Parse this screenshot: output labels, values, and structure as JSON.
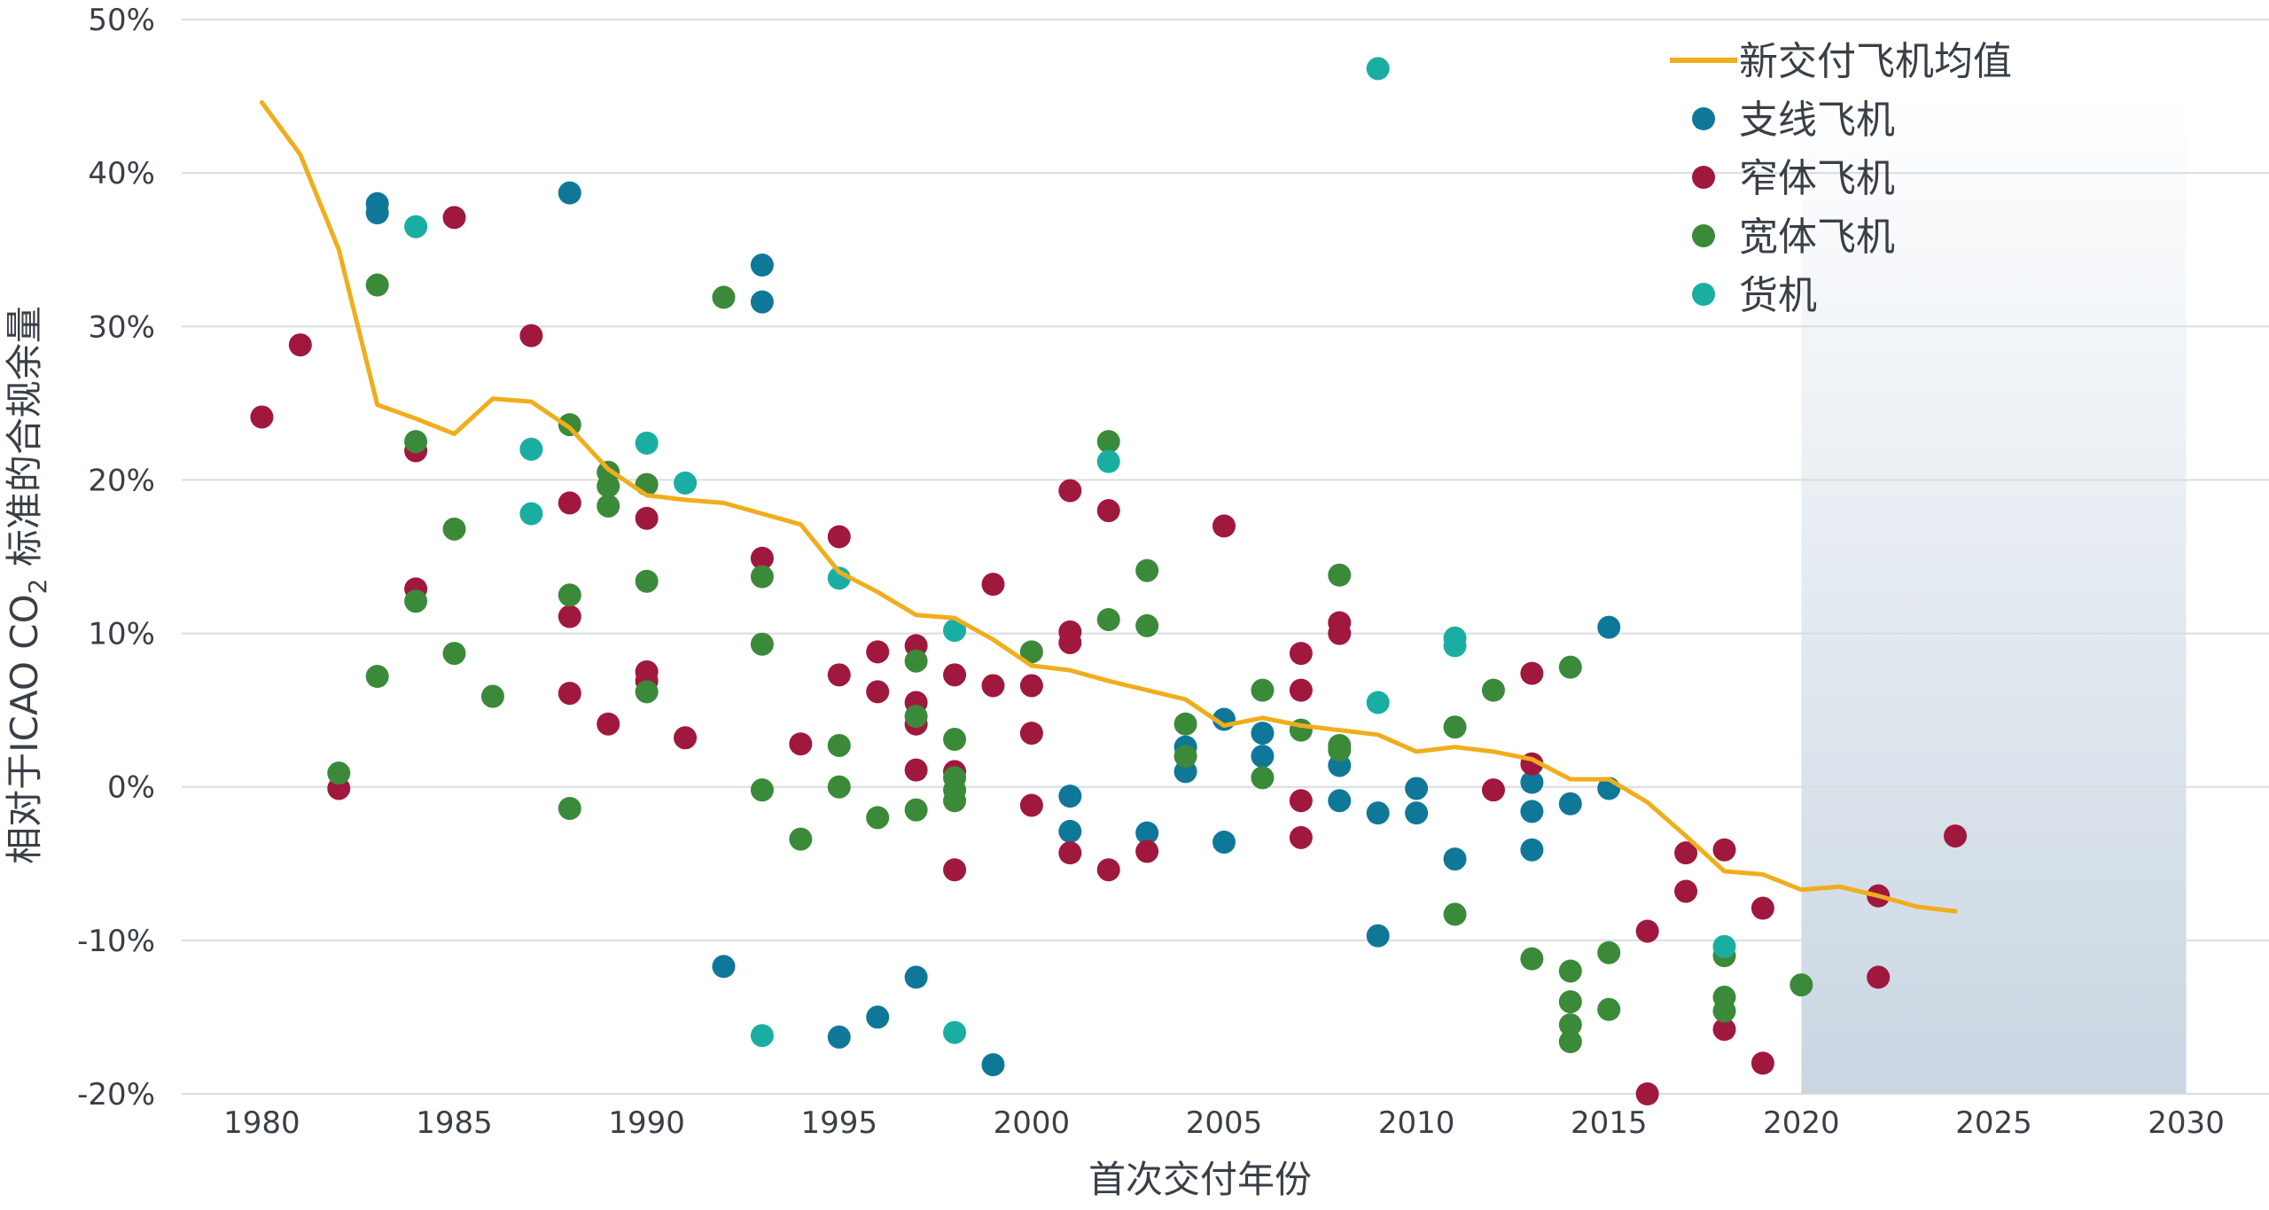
{
  "chart_data": {
    "type": "scatter",
    "xlabel": "首次交付年份",
    "ylabel_main": "相对于ICAO CO",
    "ylabel_sub": "2",
    "ylabel_tail": " 标准的合规余量",
    "xlim": [
      1979,
      2031
    ],
    "ylim": [
      -20,
      50
    ],
    "x_ticks": [
      "1980",
      "1985",
      "1990",
      "1995",
      "2000",
      "2005",
      "2010",
      "2015",
      "2020",
      "2025",
      "2030"
    ],
    "y_ticks": [
      "50%",
      "40%",
      "30%",
      "20%",
      "10%",
      "0%",
      "-10%",
      "-20%"
    ],
    "y_tick_values": [
      50,
      40,
      30,
      20,
      10,
      0,
      -10,
      -20
    ],
    "grid": "horizontal",
    "legend_position": "top-right",
    "shaded_region": {
      "x_start": 2020,
      "x_end": 2030
    },
    "colors": {
      "line": "#f0ad1c",
      "regional": "#0f7898",
      "narrowbody": "#a0183d",
      "widebody": "#3a8a3a",
      "freighter": "#1aaea3"
    },
    "legend": [
      {
        "label": "新交付飞机均值",
        "type": "line",
        "color": "#f0ad1c"
      },
      {
        "label": "支线飞机",
        "type": "dot",
        "color": "#0f7898"
      },
      {
        "label": "窄体飞机",
        "type": "dot",
        "color": "#a0183d"
      },
      {
        "label": "宽体飞机",
        "type": "dot",
        "color": "#3a8a3a"
      },
      {
        "label": "货机",
        "type": "dot",
        "color": "#1aaea3"
      }
    ],
    "line": {
      "name": "新交付飞机均值",
      "points": [
        [
          1980,
          44.6
        ],
        [
          1981,
          41.2
        ],
        [
          1982,
          35
        ],
        [
          1983,
          24.9
        ],
        [
          1984,
          24
        ],
        [
          1985,
          23
        ],
        [
          1986,
          25.3
        ],
        [
          1987,
          25.1
        ],
        [
          1988,
          23.4
        ],
        [
          1989,
          20.7
        ],
        [
          1990,
          19
        ],
        [
          1991,
          18.7
        ],
        [
          1992,
          18.5
        ],
        [
          1993,
          17.8
        ],
        [
          1994,
          17.1
        ],
        [
          1995,
          14
        ],
        [
          1996,
          12.7
        ],
        [
          1997,
          11.2
        ],
        [
          1998,
          11
        ],
        [
          1999,
          9.6
        ],
        [
          2000,
          7.9
        ],
        [
          2001,
          7.6
        ],
        [
          2002,
          6.9
        ],
        [
          2003,
          6.3
        ],
        [
          2004,
          5.7
        ],
        [
          2005,
          4
        ],
        [
          2006,
          4.5
        ],
        [
          2007,
          4
        ],
        [
          2008,
          3.7
        ],
        [
          2009,
          3.4
        ],
        [
          2010,
          2.3
        ],
        [
          2011,
          2.6
        ],
        [
          2012,
          2.3
        ],
        [
          2013,
          1.8
        ],
        [
          2014,
          0.5
        ],
        [
          2015,
          0.5
        ],
        [
          2016,
          -1
        ],
        [
          2017,
          -3.2
        ],
        [
          2018,
          -5.5
        ],
        [
          2019,
          -5.7
        ],
        [
          2020,
          -6.7
        ],
        [
          2021,
          -6.5
        ],
        [
          2022,
          -7.1
        ],
        [
          2023,
          -7.8
        ],
        [
          2024,
          -8.1
        ]
      ]
    },
    "series": [
      {
        "name": "支线飞机",
        "key": "regional",
        "points": [
          [
            1983,
            38
          ],
          [
            1983,
            37.4
          ],
          [
            1988,
            38.7
          ],
          [
            1992,
            -11.7
          ],
          [
            1993,
            34
          ],
          [
            1993,
            31.6
          ],
          [
            1995,
            -16.3
          ],
          [
            1996,
            -15
          ],
          [
            1997,
            -12.4
          ],
          [
            1999,
            -18.1
          ],
          [
            2001,
            -0.6
          ],
          [
            2001,
            -2.9
          ],
          [
            2003,
            -3
          ],
          [
            2004,
            2.6
          ],
          [
            2004,
            1
          ],
          [
            2005,
            4.4
          ],
          [
            2005,
            -3.6
          ],
          [
            2006,
            3.5
          ],
          [
            2006,
            2
          ],
          [
            2008,
            1.4
          ],
          [
            2008,
            -0.9
          ],
          [
            2009,
            -1.7
          ],
          [
            2009,
            -9.7
          ],
          [
            2010,
            -0.1
          ],
          [
            2010,
            -1.7
          ],
          [
            2011,
            -4.7
          ],
          [
            2013,
            0.3
          ],
          [
            2013,
            -1.6
          ],
          [
            2013,
            -4.1
          ],
          [
            2014,
            -1.1
          ],
          [
            2015,
            10.4
          ],
          [
            2015,
            -0.1
          ]
        ]
      },
      {
        "name": "窄体飞机",
        "key": "narrowbody",
        "points": [
          [
            1980,
            24.1
          ],
          [
            1981,
            28.8
          ],
          [
            1982,
            -0.1
          ],
          [
            1984,
            12.9
          ],
          [
            1984,
            21.9
          ],
          [
            1985,
            37.1
          ],
          [
            1987,
            29.4
          ],
          [
            1988,
            18.5
          ],
          [
            1988,
            11.1
          ],
          [
            1988,
            6.1
          ],
          [
            1989,
            4.1
          ],
          [
            1990,
            17.5
          ],
          [
            1990,
            7.5
          ],
          [
            1990,
            6.9
          ],
          [
            1991,
            3.2
          ],
          [
            1993,
            14.9
          ],
          [
            1994,
            2.8
          ],
          [
            1995,
            16.3
          ],
          [
            1995,
            7.3
          ],
          [
            1996,
            8.8
          ],
          [
            1996,
            6.2
          ],
          [
            1997,
            9.2
          ],
          [
            1997,
            5.5
          ],
          [
            1997,
            4.1
          ],
          [
            1997,
            1.1
          ],
          [
            1998,
            7.3
          ],
          [
            1998,
            1
          ],
          [
            1998,
            -5.4
          ],
          [
            1999,
            13.2
          ],
          [
            1999,
            6.6
          ],
          [
            2000,
            6.6
          ],
          [
            2000,
            3.5
          ],
          [
            2000,
            -1.2
          ],
          [
            2001,
            19.3
          ],
          [
            2001,
            10.1
          ],
          [
            2001,
            9.4
          ],
          [
            2001,
            -4.3
          ],
          [
            2002,
            18
          ],
          [
            2002,
            -5.4
          ],
          [
            2003,
            -4.2
          ],
          [
            2005,
            17
          ],
          [
            2007,
            8.7
          ],
          [
            2007,
            6.3
          ],
          [
            2007,
            -0.9
          ],
          [
            2007,
            -3.3
          ],
          [
            2008,
            10.7
          ],
          [
            2008,
            10
          ],
          [
            2012,
            -0.2
          ],
          [
            2013,
            7.4
          ],
          [
            2013,
            1.5
          ],
          [
            2016,
            -9.4
          ],
          [
            2016,
            -20
          ],
          [
            2017,
            -4.3
          ],
          [
            2017,
            -6.8
          ],
          [
            2018,
            -4.1
          ],
          [
            2018,
            -15.8
          ],
          [
            2019,
            -7.9
          ],
          [
            2019,
            -18
          ],
          [
            2022,
            -7.1
          ],
          [
            2022,
            -12.4
          ],
          [
            2024,
            -3.2
          ]
        ]
      },
      {
        "name": "宽体飞机",
        "key": "widebody",
        "points": [
          [
            1982,
            0.9
          ],
          [
            1983,
            32.7
          ],
          [
            1983,
            7.2
          ],
          [
            1984,
            22.5
          ],
          [
            1984,
            12.1
          ],
          [
            1985,
            16.8
          ],
          [
            1985,
            8.7
          ],
          [
            1986,
            5.9
          ],
          [
            1988,
            23.6
          ],
          [
            1988,
            12.5
          ],
          [
            1988,
            -1.4
          ],
          [
            1989,
            20.5
          ],
          [
            1989,
            19.6
          ],
          [
            1989,
            18.3
          ],
          [
            1990,
            19.7
          ],
          [
            1990,
            13.4
          ],
          [
            1990,
            6.2
          ],
          [
            1992,
            31.9
          ],
          [
            1993,
            13.7
          ],
          [
            1993,
            9.3
          ],
          [
            1993,
            -0.2
          ],
          [
            1994,
            -3.4
          ],
          [
            1995,
            2.7
          ],
          [
            1995,
            0
          ],
          [
            1996,
            -2
          ],
          [
            1997,
            8.2
          ],
          [
            1997,
            4.6
          ],
          [
            1997,
            -1.5
          ],
          [
            1998,
            3.1
          ],
          [
            1998,
            0.6
          ],
          [
            1998,
            -0.2
          ],
          [
            1998,
            -0.9
          ],
          [
            2000,
            8.8
          ],
          [
            2002,
            22.5
          ],
          [
            2002,
            10.9
          ],
          [
            2003,
            14.1
          ],
          [
            2003,
            10.5
          ],
          [
            2004,
            4.1
          ],
          [
            2004,
            2
          ],
          [
            2006,
            6.3
          ],
          [
            2006,
            0.6
          ],
          [
            2007,
            3.7
          ],
          [
            2008,
            13.8
          ],
          [
            2008,
            2.7
          ],
          [
            2008,
            2.4
          ],
          [
            2011,
            3.9
          ],
          [
            2011,
            -8.3
          ],
          [
            2012,
            6.3
          ],
          [
            2013,
            -11.2
          ],
          [
            2014,
            7.8
          ],
          [
            2014,
            -12
          ],
          [
            2014,
            -14
          ],
          [
            2014,
            -15.5
          ],
          [
            2014,
            -16.6
          ],
          [
            2015,
            -10.8
          ],
          [
            2015,
            -14.5
          ],
          [
            2018,
            -11
          ],
          [
            2018,
            -13.7
          ],
          [
            2018,
            -14.6
          ],
          [
            2020,
            -12.9
          ]
        ]
      },
      {
        "name": "货机",
        "key": "freighter",
        "points": [
          [
            1984,
            36.5
          ],
          [
            1987,
            22
          ],
          [
            1987,
            17.8
          ],
          [
            1990,
            22.4
          ],
          [
            1991,
            19.8
          ],
          [
            1993,
            -16.2
          ],
          [
            1995,
            13.6
          ],
          [
            1998,
            10.2
          ],
          [
            1998,
            -16
          ],
          [
            2002,
            21.2
          ],
          [
            2009,
            46.8
          ],
          [
            2009,
            5.5
          ],
          [
            2011,
            9.7
          ],
          [
            2011,
            9.2
          ],
          [
            2018,
            -10.4
          ]
        ]
      }
    ]
  }
}
